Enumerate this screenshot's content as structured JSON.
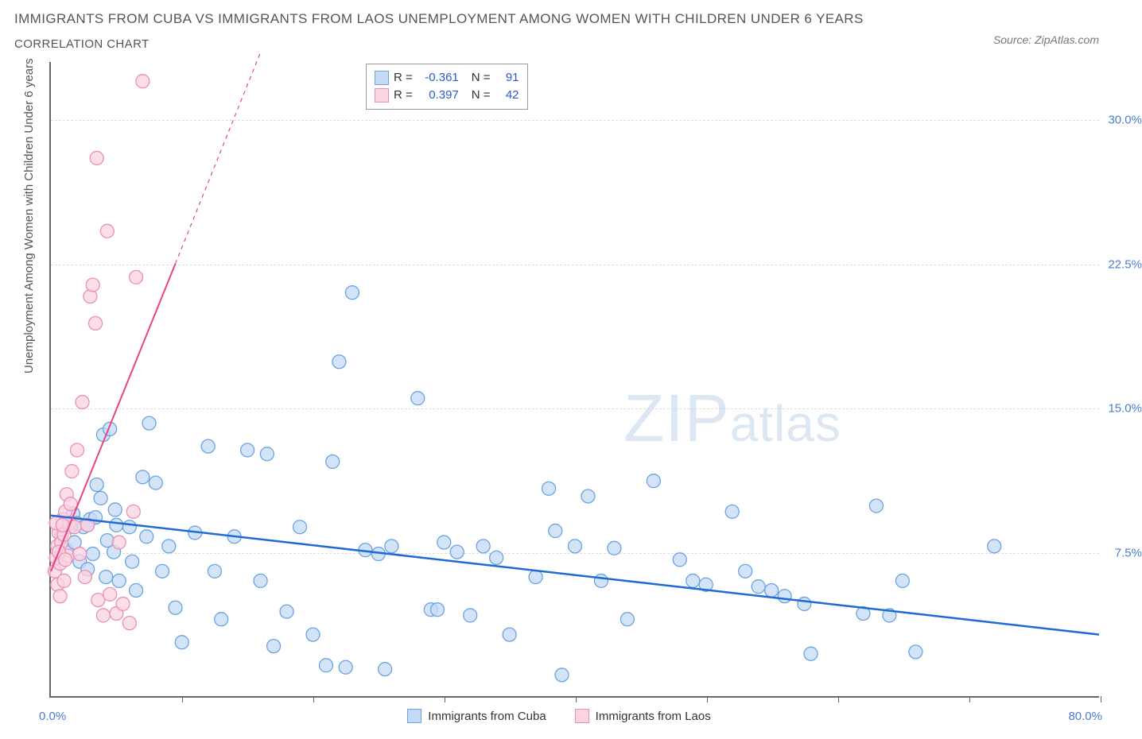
{
  "title_main": "IMMIGRANTS FROM CUBA VS IMMIGRANTS FROM LAOS UNEMPLOYMENT AMONG WOMEN WITH CHILDREN UNDER 6 YEARS",
  "title_sub": "CORRELATION CHART",
  "source_label": "Source: ZipAtlas.com",
  "yaxis_title": "Unemployment Among Women with Children Under 6 years",
  "watermark_big": "ZIP",
  "watermark_small": "atlas",
  "chart": {
    "type": "scatter",
    "xlim": [
      0,
      80
    ],
    "ylim": [
      0,
      33
    ],
    "xaxis_min_label": "0.0%",
    "xaxis_max_label": "80.0%",
    "xtick_positions": [
      10,
      20,
      30,
      40,
      50,
      60,
      70,
      80
    ],
    "yticks": [
      7.5,
      15.0,
      22.5,
      30.0
    ],
    "ytick_labels": [
      "7.5%",
      "15.0%",
      "22.5%",
      "30.0%"
    ],
    "grid_color": "#dddddd",
    "background_color": "#ffffff",
    "series": [
      {
        "name": "Immigrants from Cuba",
        "marker_fill": "#c5dbf5",
        "marker_stroke": "#6aa3e0",
        "marker_radius": 8.5,
        "line_color": "#1e6bd6",
        "line_width": 2.5,
        "R": -0.361,
        "N": 91,
        "trend": {
          "x1": 0,
          "y1": 9.4,
          "x2": 80,
          "y2": 3.2
        },
        "points": [
          [
            0.8,
            8.3
          ],
          [
            1.0,
            9.0
          ],
          [
            1.2,
            7.6
          ],
          [
            1.5,
            8.8
          ],
          [
            1.7,
            9.5
          ],
          [
            1.8,
            8.0
          ],
          [
            2.0,
            9.0
          ],
          [
            2.2,
            7.0
          ],
          [
            2.5,
            8.8
          ],
          [
            2.8,
            6.6
          ],
          [
            3.0,
            9.2
          ],
          [
            3.2,
            7.4
          ],
          [
            3.5,
            11.0
          ],
          [
            3.8,
            10.3
          ],
          [
            4.0,
            13.6
          ],
          [
            4.2,
            6.2
          ],
          [
            4.5,
            13.9
          ],
          [
            4.8,
            7.5
          ],
          [
            5.0,
            8.9
          ],
          [
            5.2,
            6.0
          ],
          [
            6.0,
            8.8
          ],
          [
            6.5,
            5.5
          ],
          [
            7.0,
            11.4
          ],
          [
            7.5,
            14.2
          ],
          [
            8.0,
            11.1
          ],
          [
            8.5,
            6.5
          ],
          [
            9.0,
            7.8
          ],
          [
            9.5,
            4.6
          ],
          [
            10.0,
            2.8
          ],
          [
            11.0,
            8.5
          ],
          [
            12.0,
            13.0
          ],
          [
            12.5,
            6.5
          ],
          [
            13.0,
            4.0
          ],
          [
            14.0,
            8.3
          ],
          [
            15.0,
            12.8
          ],
          [
            16.0,
            6.0
          ],
          [
            16.5,
            12.6
          ],
          [
            17.0,
            2.6
          ],
          [
            18.0,
            4.4
          ],
          [
            19.0,
            8.8
          ],
          [
            20.0,
            3.2
          ],
          [
            21.0,
            1.6
          ],
          [
            21.5,
            12.2
          ],
          [
            22.0,
            17.4
          ],
          [
            22.5,
            1.5
          ],
          [
            23.0,
            21.0
          ],
          [
            24.0,
            7.6
          ],
          [
            25.0,
            7.4
          ],
          [
            25.5,
            1.4
          ],
          [
            26.0,
            7.8
          ],
          [
            28.0,
            15.5
          ],
          [
            29.0,
            4.5
          ],
          [
            29.5,
            4.5
          ],
          [
            30.0,
            8.0
          ],
          [
            31.0,
            7.5
          ],
          [
            32.0,
            4.2
          ],
          [
            33.0,
            7.8
          ],
          [
            34.0,
            7.2
          ],
          [
            35.0,
            3.2
          ],
          [
            37.0,
            6.2
          ],
          [
            38.0,
            10.8
          ],
          [
            38.5,
            8.6
          ],
          [
            39.0,
            1.1
          ],
          [
            40.0,
            7.8
          ],
          [
            41.0,
            10.4
          ],
          [
            42.0,
            6.0
          ],
          [
            43.0,
            7.7
          ],
          [
            44.0,
            4.0
          ],
          [
            46.0,
            11.2
          ],
          [
            48.0,
            7.1
          ],
          [
            49.0,
            6.0
          ],
          [
            50.0,
            5.8
          ],
          [
            52.0,
            9.6
          ],
          [
            53.0,
            6.5
          ],
          [
            54.0,
            5.7
          ],
          [
            55.0,
            5.5
          ],
          [
            56.0,
            5.2
          ],
          [
            57.5,
            4.8
          ],
          [
            58.0,
            2.2
          ],
          [
            62.0,
            4.3
          ],
          [
            63.0,
            9.9
          ],
          [
            64.0,
            4.2
          ],
          [
            65.0,
            6.0
          ],
          [
            66.0,
            2.3
          ],
          [
            72.0,
            7.8
          ],
          [
            2.8,
            8.9
          ],
          [
            3.4,
            9.3
          ],
          [
            4.3,
            8.1
          ],
          [
            4.9,
            9.7
          ],
          [
            6.2,
            7.0
          ],
          [
            7.3,
            8.3
          ]
        ]
      },
      {
        "name": "Immigrants from Laos",
        "marker_fill": "#fbd3e1",
        "marker_stroke": "#ea8fb4",
        "marker_radius": 8.5,
        "line_color": "#e6457f",
        "line_width": 2,
        "R": 0.397,
        "N": 42,
        "trend_solid": {
          "x1": 0,
          "y1": 6.5,
          "x2": 9.5,
          "y2": 22.5
        },
        "trend_dashed": {
          "x1": 9.5,
          "y1": 22.5,
          "x2": 16,
          "y2": 33.5
        },
        "points": [
          [
            0.3,
            6.5
          ],
          [
            0.4,
            7.2
          ],
          [
            0.5,
            7.8
          ],
          [
            0.6,
            8.5
          ],
          [
            0.7,
            6.9
          ],
          [
            0.8,
            8.0
          ],
          [
            0.9,
            9.2
          ],
          [
            1.0,
            8.4
          ],
          [
            1.1,
            9.6
          ],
          [
            1.2,
            10.5
          ],
          [
            0.5,
            5.8
          ],
          [
            0.7,
            5.2
          ],
          [
            1.0,
            6.0
          ],
          [
            1.3,
            7.3
          ],
          [
            1.4,
            9.0
          ],
          [
            1.5,
            10.0
          ],
          [
            1.6,
            11.7
          ],
          [
            1.8,
            8.8
          ],
          [
            2.0,
            12.8
          ],
          [
            2.2,
            7.4
          ],
          [
            2.4,
            15.3
          ],
          [
            2.6,
            6.2
          ],
          [
            2.8,
            8.9
          ],
          [
            3.0,
            20.8
          ],
          [
            3.2,
            21.4
          ],
          [
            3.4,
            19.4
          ],
          [
            3.6,
            5.0
          ],
          [
            4.0,
            4.2
          ],
          [
            4.3,
            24.2
          ],
          [
            4.5,
            5.3
          ],
          [
            5.0,
            4.3
          ],
          [
            5.2,
            8.0
          ],
          [
            5.5,
            4.8
          ],
          [
            6.0,
            3.8
          ],
          [
            6.3,
            9.6
          ],
          [
            6.5,
            21.8
          ],
          [
            7.0,
            32.0
          ],
          [
            3.5,
            28.0
          ],
          [
            0.4,
            9.0
          ],
          [
            0.6,
            7.5
          ],
          [
            0.9,
            8.9
          ],
          [
            1.1,
            7.1
          ]
        ]
      }
    ]
  },
  "legend_top": {
    "rows": [
      {
        "swatch_fill": "#c5dbf5",
        "swatch_stroke": "#6aa3e0",
        "R_label": "R =",
        "R": "-0.361",
        "N_label": "N =",
        "N": "91"
      },
      {
        "swatch_fill": "#fbd3e1",
        "swatch_stroke": "#ea8fb4",
        "R_label": "R =",
        "R": "0.397",
        "N_label": "N =",
        "N": "42"
      }
    ]
  },
  "legend_bottom": {
    "items": [
      {
        "swatch_fill": "#c5dbf5",
        "swatch_stroke": "#6aa3e0",
        "label": "Immigrants from Cuba"
      },
      {
        "swatch_fill": "#fbd3e1",
        "swatch_stroke": "#ea8fb4",
        "label": "Immigrants from Laos"
      }
    ]
  }
}
